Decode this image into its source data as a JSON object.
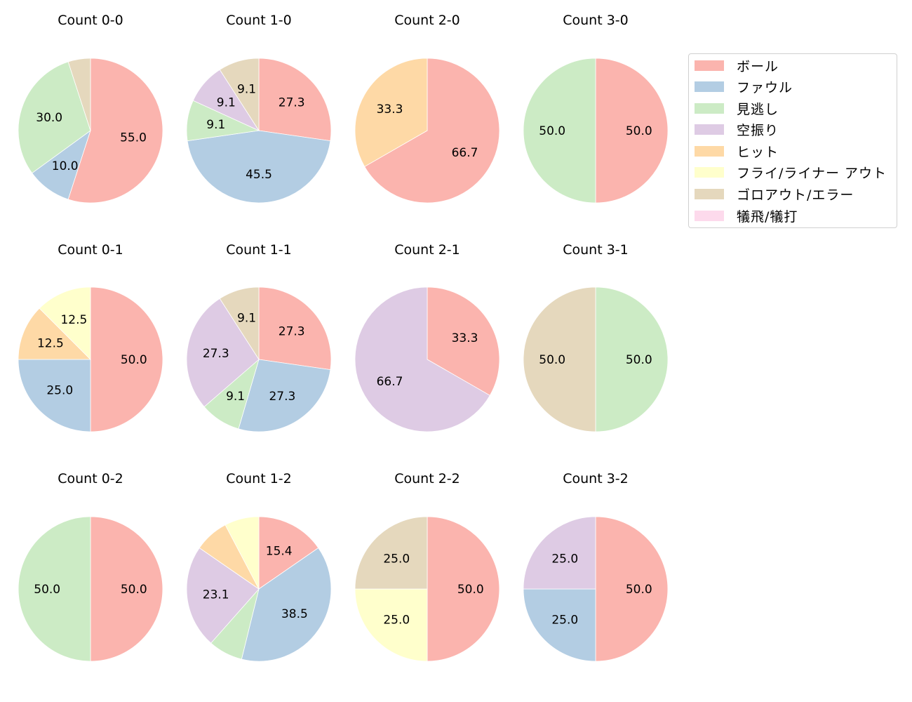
{
  "legend": {
    "items": [
      {
        "label": "ボール",
        "color": "#fbb4ae"
      },
      {
        "label": "ファウル",
        "color": "#b3cde3"
      },
      {
        "label": "見逃し",
        "color": "#ccebc5"
      },
      {
        "label": "空振り",
        "color": "#decbe4"
      },
      {
        "label": "ヒット",
        "color": "#fed9a6"
      },
      {
        "label": "フライ/ライナー アウト",
        "color": "#ffffcc"
      },
      {
        "label": "ゴロアウト/エラー",
        "color": "#e5d8bd"
      },
      {
        "label": "犠飛/犠打",
        "color": "#fddaec"
      }
    ]
  },
  "chart_data": {
    "type": "pie",
    "categories": [
      "ボール",
      "ファウル",
      "見逃し",
      "空振り",
      "ヒット",
      "フライ/ライナー アウト",
      "ゴロアウト/エラー",
      "犠飛/犠打"
    ],
    "colors": [
      "#fbb4ae",
      "#b3cde3",
      "#ccebc5",
      "#decbe4",
      "#fed9a6",
      "#ffffcc",
      "#e5d8bd",
      "#fddaec"
    ],
    "label_threshold_pct": 9,
    "charts": [
      {
        "title": "Count 0-0",
        "row": 0,
        "col": 0,
        "values": [
          55.0,
          10.0,
          30.0,
          0,
          0,
          0,
          5.0,
          0
        ]
      },
      {
        "title": "Count 1-0",
        "row": 0,
        "col": 1,
        "values": [
          27.3,
          45.5,
          9.1,
          9.1,
          0,
          0,
          9.1,
          0
        ]
      },
      {
        "title": "Count 2-0",
        "row": 0,
        "col": 2,
        "values": [
          66.7,
          0,
          0,
          0,
          33.3,
          0,
          0,
          0
        ]
      },
      {
        "title": "Count 3-0",
        "row": 0,
        "col": 3,
        "values": [
          50.0,
          0,
          50.0,
          0,
          0,
          0,
          0,
          0
        ]
      },
      {
        "title": "Count 0-1",
        "row": 1,
        "col": 0,
        "values": [
          50.0,
          25.0,
          0,
          0,
          12.5,
          12.5,
          0,
          0
        ]
      },
      {
        "title": "Count 1-1",
        "row": 1,
        "col": 1,
        "values": [
          27.3,
          27.3,
          9.1,
          27.3,
          0,
          0,
          9.1,
          0
        ]
      },
      {
        "title": "Count 2-1",
        "row": 1,
        "col": 2,
        "values": [
          33.3,
          0,
          0,
          66.7,
          0,
          0,
          0,
          0
        ]
      },
      {
        "title": "Count 3-1",
        "row": 1,
        "col": 3,
        "values": [
          0,
          0,
          50.0,
          0,
          0,
          0,
          50.0,
          0
        ]
      },
      {
        "title": "Count 0-2",
        "row": 2,
        "col": 0,
        "values": [
          50.0,
          0,
          50.0,
          0,
          0,
          0,
          0,
          0
        ]
      },
      {
        "title": "Count 1-2",
        "row": 2,
        "col": 1,
        "values": [
          15.4,
          38.5,
          7.7,
          23.1,
          7.7,
          7.7,
          0,
          0
        ]
      },
      {
        "title": "Count 2-2",
        "row": 2,
        "col": 2,
        "values": [
          50.0,
          0,
          0,
          0,
          0,
          25.0,
          25.0,
          0
        ]
      },
      {
        "title": "Count 3-2",
        "row": 2,
        "col": 3,
        "values": [
          50.0,
          25.0,
          0,
          25.0,
          0,
          0,
          0,
          0
        ]
      }
    ],
    "label_format": "%.1f",
    "start_angle_deg": 90,
    "direction": "clockwise",
    "legend_position": "upper right"
  }
}
